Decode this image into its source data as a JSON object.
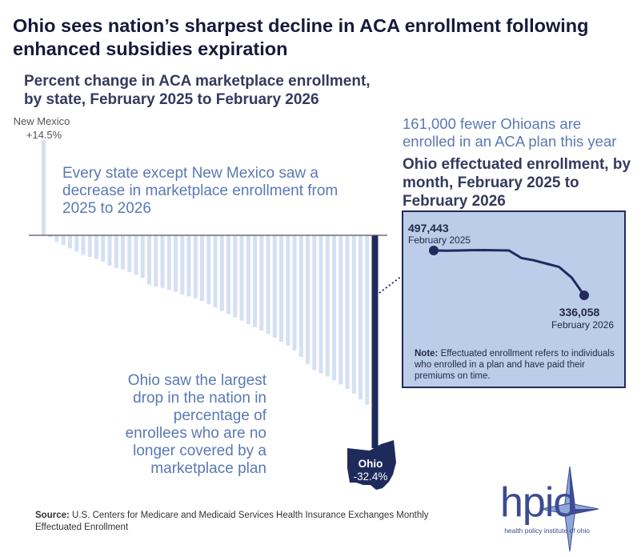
{
  "title": "Ohio sees nation’s sharpest decline in ACA enrollment following enhanced subsidies expiration",
  "chart_data": [
    {
      "type": "bar",
      "title": "Percent change in ACA marketplace enrollment, by state, February 2025 to February 2026",
      "xlabel": "",
      "ylabel": "",
      "unit": "%",
      "ylim": [
        -35,
        15
      ],
      "labeled": [
        {
          "name": "New Mexico",
          "value_label": "+14.5%"
        },
        {
          "name": "Ohio",
          "value_label": "-32.4%"
        }
      ],
      "values": [
        14.5,
        -0.3,
        -1.0,
        -1.5,
        -2.0,
        -2.5,
        -3.0,
        -3.3,
        -3.6,
        -4.0,
        -4.6,
        -5.0,
        -5.2,
        -5.6,
        -6.0,
        -6.5,
        -7.5,
        -7.8,
        -8.0,
        -8.3,
        -8.6,
        -9.0,
        -9.3,
        -9.6,
        -10.0,
        -10.5,
        -11.0,
        -11.5,
        -12.0,
        -12.5,
        -13.0,
        -13.5,
        -14.0,
        -14.5,
        -15.0,
        -15.6,
        -16.2,
        -16.8,
        -17.5,
        -18.5,
        -19.6,
        -20.5,
        -21.0,
        -21.5,
        -22.1,
        -22.7,
        -23.4,
        -24.1,
        -25.0,
        -25.8,
        -32.4
      ],
      "highlight_index": 50,
      "colors": {
        "bar": "#d5e0f2",
        "highlight": "#1f2a5c",
        "axis": "#555555"
      }
    },
    {
      "type": "line",
      "title": "Ohio effectuated enrollment, by month, February 2025 to February 2026",
      "x": [
        "February 2025",
        "",
        "",
        "",
        "",
        "",
        "",
        "",
        "",
        "",
        "",
        "",
        "February 2026"
      ],
      "values": [
        497443,
        496500,
        497500,
        498500,
        499000,
        498000,
        497500,
        470000,
        462000,
        450000,
        438000,
        400000,
        336058
      ],
      "ylim": [
        320000,
        520000
      ],
      "start": {
        "value_label": "497,443",
        "date_label": "February 2025"
      },
      "end": {
        "value_label": "336,058",
        "date_label": "February 2026"
      },
      "colors": {
        "line": "#222a5c",
        "background": "#bccde9"
      }
    }
  ],
  "callouts": {
    "new_mexico_text": "Every state except New Mexico saw a decrease in marketplace enrollment from 2025 to 2026",
    "ohio_text": "Ohio saw the largest drop in the nation in percentage of enrollees who are no longer covered by a marketplace plan",
    "ohio_map": {
      "label": "Ohio",
      "value": "-32.4%"
    }
  },
  "right_panel": {
    "heading": "161,000 fewer Ohioans are enrolled in an ACA plan this year",
    "note_label": "Note:",
    "note_text": " Effectuated enrollment refers to individuals who enrolled in a plan and have paid their premiums on time."
  },
  "source": {
    "label": "Source:",
    "text": " U.S. Centers for Medicare and Medicaid Services Health Insurance Exchanges Monthly Effectuated Enrollment"
  },
  "logo": {
    "word": "hpio",
    "tagline": "health policy institute of ohio",
    "icon": "compass-star-icon",
    "color": "#3c4b94"
  }
}
